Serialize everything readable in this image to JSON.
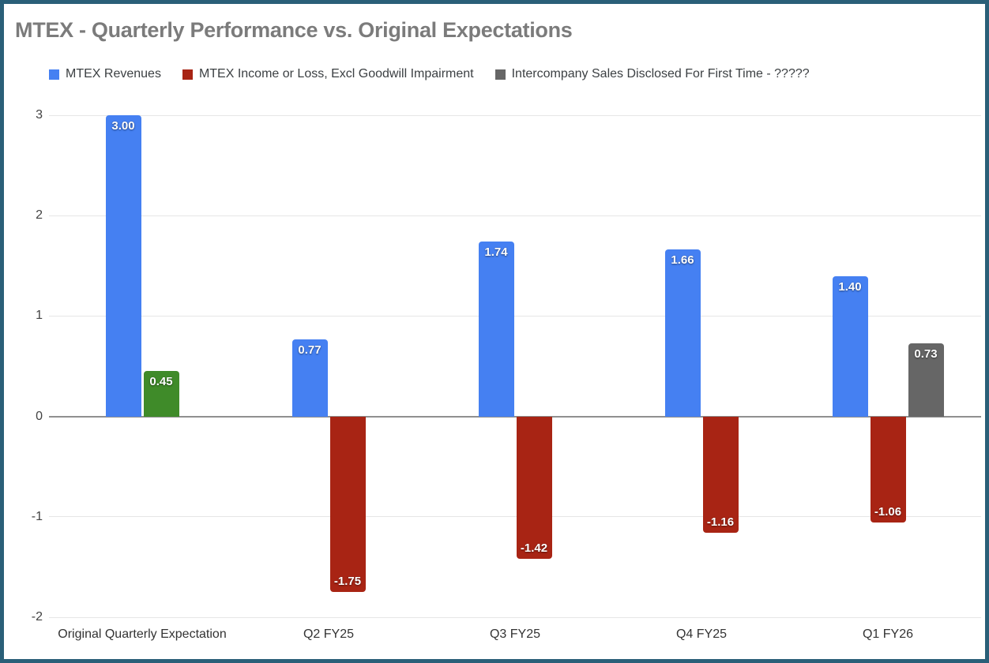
{
  "frame": {
    "border_color": "#2a5f78",
    "background": "#ffffff"
  },
  "chart_data": {
    "type": "bar",
    "title": "MTEX - Quarterly Performance vs. Original Expectations",
    "categories": [
      "Original Quarterly Expectation",
      "Q2 FY25",
      "Q3 FY25",
      "Q4 FY25",
      "Q1 FY26"
    ],
    "series": [
      {
        "name": "MTEX Revenues",
        "color": "#4580f2",
        "values": [
          3.0,
          0.77,
          1.74,
          1.66,
          1.4
        ]
      },
      {
        "name": "MTEX Income or Loss, Excl Goodwill Impairment",
        "color": "#a82414",
        "point_colors": [
          "#3f8b29",
          null,
          null,
          null,
          null
        ],
        "values": [
          0.45,
          -1.75,
          -1.42,
          -1.16,
          -1.06
        ]
      },
      {
        "name": "Intercompany Sales Disclosed For First Time - ?????",
        "color": "#666666",
        "values": [
          null,
          null,
          null,
          null,
          0.73
        ]
      }
    ],
    "data_labels": true,
    "label_format_decimals": 2,
    "y_ticks": [
      3,
      2,
      1,
      0,
      -1,
      -2
    ],
    "ylim": [
      -2,
      3
    ],
    "grid": true,
    "legend_position": "top",
    "colors": {
      "title_text": "#7b7b7b",
      "axis_text": "#424242",
      "legend_text": "#3c4043",
      "gridline": "#e6e6e6",
      "zero_line": "#8f8f8f",
      "data_label_text": "#ffffff"
    }
  }
}
